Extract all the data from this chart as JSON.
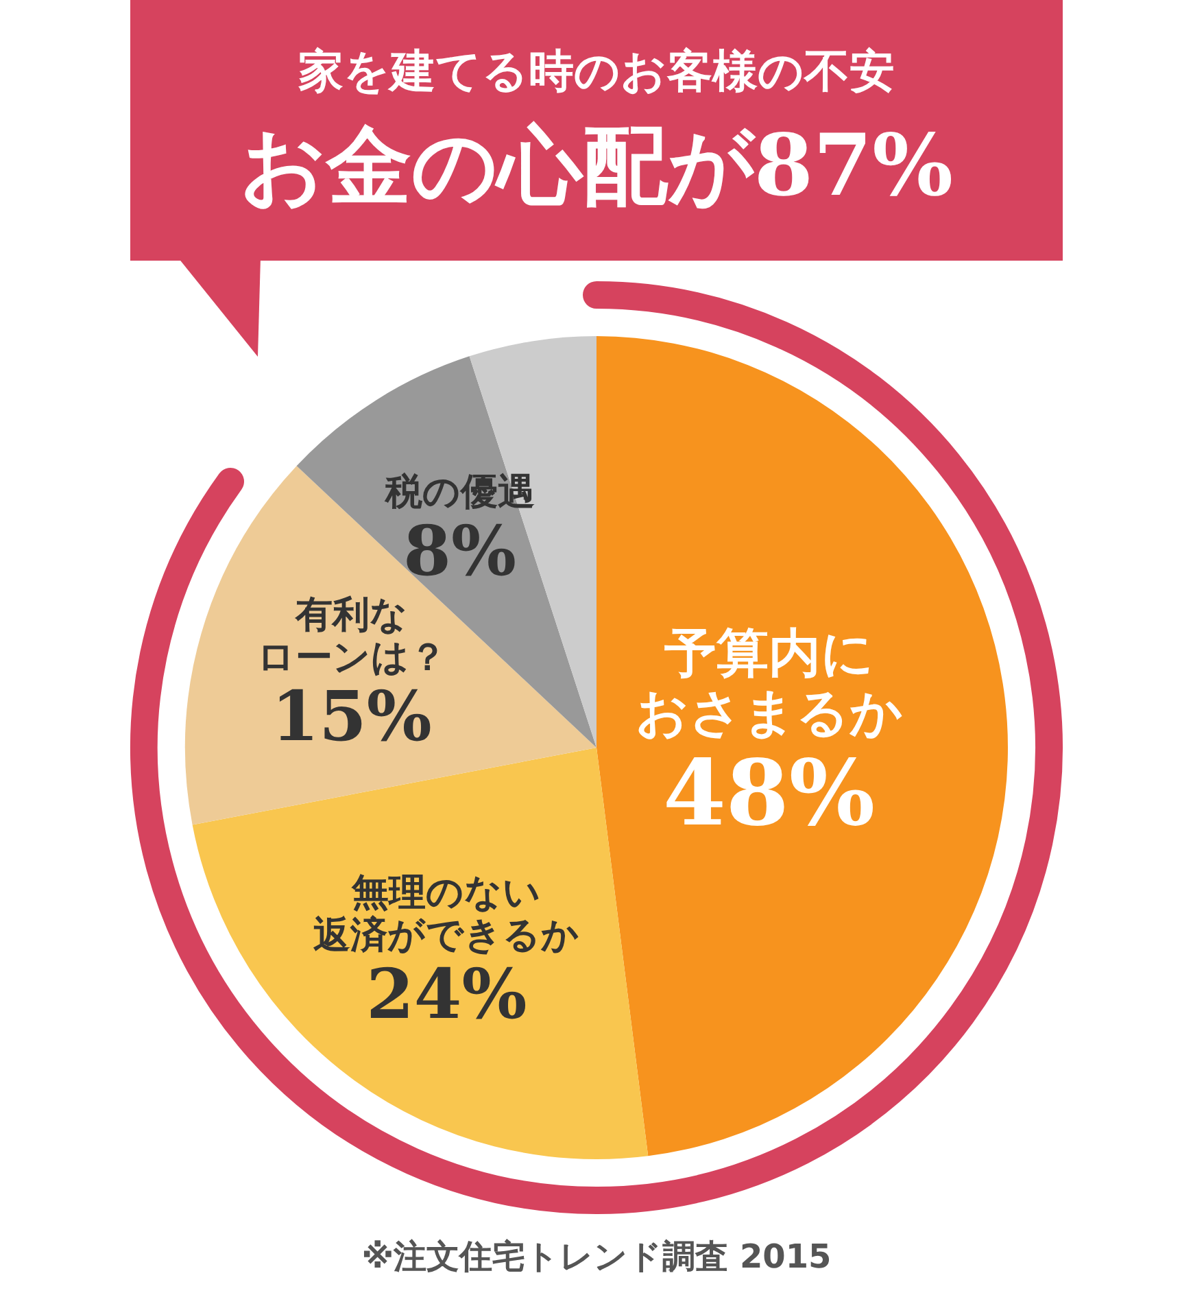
{
  "chart_data": {
    "type": "pie",
    "title": "家を建てる時のお客様の不安",
    "subtitle": "お金の心配が87%",
    "categories": [
      "予算内におさまるか",
      "無理のない返済ができるか",
      "有利なローンは？",
      "税の優遇",
      null
    ],
    "values": [
      48,
      24,
      15,
      8,
      5
    ],
    "colors": [
      "#f7931e",
      "#f9c64f",
      "#eecb96",
      "#999999",
      "#cccccc"
    ],
    "value_labels": [
      "48%",
      "24%",
      "15%",
      "8%",
      null
    ],
    "annotations": [
      "※注文住宅トレンド調査 2015"
    ],
    "legend": false
  }
}
